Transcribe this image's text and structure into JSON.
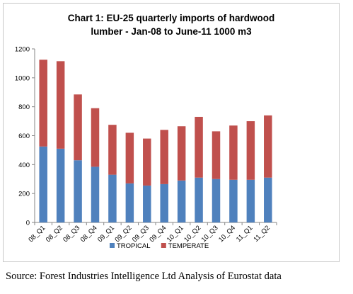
{
  "chart_data": {
    "type": "bar",
    "stacked": true,
    "title_lines": [
      "Chart 1: EU-25 quarterly imports of hardwood",
      "lumber - Jan-08 to June-11 1000 m3"
    ],
    "categories": [
      "08_Q1",
      "08_Q2",
      "08_Q3",
      "08_Q4",
      "09_Q1",
      "09_Q2",
      "09_Q3",
      "09_Q4",
      "10_Q1",
      "10_Q2",
      "10_Q3",
      "10_Q4",
      "11_Q1",
      "11_Q2"
    ],
    "series": [
      {
        "name": "TROPICAL",
        "color": "#4f81bd",
        "values": [
          525,
          510,
          430,
          385,
          330,
          270,
          255,
          265,
          290,
          310,
          300,
          295,
          295,
          310
        ]
      },
      {
        "name": "TEMPERATE",
        "color": "#c0504d",
        "values": [
          600,
          605,
          455,
          405,
          345,
          350,
          325,
          375,
          375,
          420,
          330,
          375,
          405,
          430
        ]
      }
    ],
    "ylim": [
      0,
      1200
    ],
    "yticks": [
      0,
      200,
      400,
      600,
      800,
      1000,
      1200
    ],
    "grid": false,
    "legend_position": "bottom",
    "xlabel": "",
    "ylabel": ""
  },
  "source": "Source: Forest Industries Intelligence Ltd Analysis of Eurostat data"
}
